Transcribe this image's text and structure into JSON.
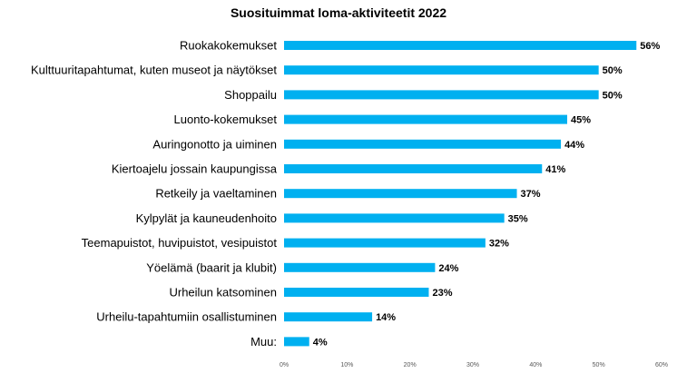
{
  "chart_data": {
    "type": "bar",
    "orientation": "horizontal",
    "title": "Suosituimmat loma-aktiviteetit 2022",
    "categories": [
      "Ruokakokemukset",
      "Kulttuuritapahtumat, kuten museot ja näytökset",
      "Shoppailu",
      "Luonto-kokemukset",
      "Auringonotto ja uiminen",
      "Kiertoajelu jossain kaupungissa",
      "Retkeily ja vaeltaminen",
      "Kylpylät ja kauneudenhoito",
      "Teemapuistot, huvipuistot, vesipuistot",
      "Yöelämä (baarit ja klubit)",
      "Urheilun katsominen",
      "Urheilu-tapahtumiin osallistuminen",
      "Muu:"
    ],
    "values": [
      56,
      50,
      50,
      45,
      44,
      41,
      37,
      35,
      32,
      24,
      23,
      14,
      4
    ],
    "value_labels": [
      "56%",
      "50%",
      "50%",
      "45%",
      "44%",
      "41%",
      "37%",
      "35%",
      "32%",
      "24%",
      "23%",
      "14%",
      "4%"
    ],
    "xlim": [
      0,
      60
    ],
    "xticks": [
      0,
      10,
      20,
      30,
      40,
      50,
      60
    ],
    "xtick_labels": [
      "0%",
      "10%",
      "20%",
      "30%",
      "40%",
      "50%",
      "60%"
    ],
    "xlabel": "",
    "ylabel": "",
    "grid": false,
    "legend": "none",
    "bar_color": "#00B0F0"
  }
}
